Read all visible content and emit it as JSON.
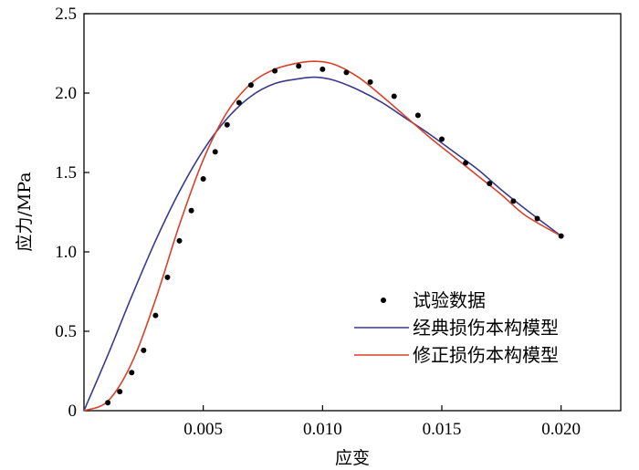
{
  "chart_data": {
    "type": "line",
    "title": "",
    "xlabel": "应变",
    "ylabel": "应力/MPa",
    "xlim": [
      0,
      0.0225
    ],
    "ylim": [
      0,
      2.5
    ],
    "x_ticks": [
      0.005,
      0.01,
      0.015,
      0.02
    ],
    "x_tick_labels": [
      "0.005",
      "0.010",
      "0.015",
      "0.020"
    ],
    "y_ticks": [
      0,
      0.5,
      1.0,
      1.5,
      2.0,
      2.5
    ],
    "y_tick_labels": [
      "0",
      "0.5",
      "1.0",
      "1.5",
      "2.0",
      "2.5"
    ],
    "grid": false,
    "legend_position": "bottom-right",
    "colors": {
      "points": "#000000",
      "classic": "#3a3a8c",
      "modified": "#d9412b"
    },
    "series": [
      {
        "name": "试验数据",
        "kind": "scatter",
        "points": [
          [
            0.001,
            0.05
          ],
          [
            0.0015,
            0.12
          ],
          [
            0.002,
            0.24
          ],
          [
            0.0025,
            0.38
          ],
          [
            0.003,
            0.6
          ],
          [
            0.0035,
            0.84
          ],
          [
            0.004,
            1.07
          ],
          [
            0.0045,
            1.26
          ],
          [
            0.005,
            1.46
          ],
          [
            0.0055,
            1.63
          ],
          [
            0.006,
            1.8
          ],
          [
            0.0065,
            1.94
          ],
          [
            0.007,
            2.05
          ],
          [
            0.008,
            2.14
          ],
          [
            0.009,
            2.17
          ],
          [
            0.01,
            2.15
          ],
          [
            0.011,
            2.13
          ],
          [
            0.012,
            2.07
          ],
          [
            0.013,
            1.98
          ],
          [
            0.014,
            1.86
          ],
          [
            0.015,
            1.71
          ],
          [
            0.016,
            1.56
          ],
          [
            0.017,
            1.43
          ],
          [
            0.018,
            1.32
          ],
          [
            0.019,
            1.21
          ],
          [
            0.02,
            1.1
          ]
        ]
      },
      {
        "name": "经典损伤本构模型",
        "kind": "line",
        "points": [
          [
            0.0,
            0.0
          ],
          [
            0.001,
            0.35
          ],
          [
            0.002,
            0.72
          ],
          [
            0.003,
            1.07
          ],
          [
            0.004,
            1.38
          ],
          [
            0.005,
            1.64
          ],
          [
            0.006,
            1.84
          ],
          [
            0.007,
            1.98
          ],
          [
            0.008,
            2.06
          ],
          [
            0.009,
            2.09
          ],
          [
            0.0097,
            2.1
          ],
          [
            0.0105,
            2.08
          ],
          [
            0.0115,
            2.02
          ],
          [
            0.0125,
            1.94
          ],
          [
            0.0135,
            1.84
          ],
          [
            0.0145,
            1.74
          ],
          [
            0.0155,
            1.63
          ],
          [
            0.0165,
            1.52
          ],
          [
            0.0175,
            1.39
          ],
          [
            0.0185,
            1.27
          ],
          [
            0.02,
            1.1
          ]
        ]
      },
      {
        "name": "修正损伤本构模型",
        "kind": "line",
        "points": [
          [
            0.0,
            0.0
          ],
          [
            0.001,
            0.06
          ],
          [
            0.002,
            0.3
          ],
          [
            0.003,
            0.7
          ],
          [
            0.004,
            1.17
          ],
          [
            0.005,
            1.58
          ],
          [
            0.006,
            1.88
          ],
          [
            0.007,
            2.06
          ],
          [
            0.008,
            2.15
          ],
          [
            0.009,
            2.19
          ],
          [
            0.0097,
            2.2
          ],
          [
            0.0105,
            2.18
          ],
          [
            0.0115,
            2.1
          ],
          [
            0.0125,
            1.98
          ],
          [
            0.0135,
            1.85
          ],
          [
            0.0145,
            1.72
          ],
          [
            0.0155,
            1.6
          ],
          [
            0.0165,
            1.48
          ],
          [
            0.0175,
            1.36
          ],
          [
            0.0185,
            1.23
          ],
          [
            0.02,
            1.1
          ]
        ]
      }
    ]
  }
}
